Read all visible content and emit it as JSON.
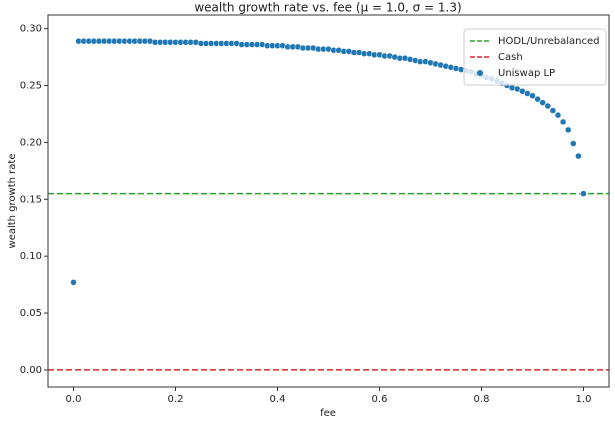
{
  "chart_data": {
    "type": "scatter",
    "title": "wealth growth rate vs. fee (μ = 1.0, σ = 1.3)",
    "xlabel": "fee",
    "ylabel": "wealth growth rate",
    "xlim": [
      -0.05,
      1.05
    ],
    "ylim": [
      -0.015,
      0.312
    ],
    "xticks": [
      {
        "value": 0,
        "label": "0.0"
      },
      0.2,
      0.4,
      0.6,
      0.8,
      {
        "value": 1,
        "label": "1.0"
      }
    ],
    "yticks": [
      {
        "value": 0,
        "label": "0.00"
      },
      0.05,
      {
        "value": 0.1,
        "label": "0.10"
      },
      0.15,
      {
        "value": 0.2,
        "label": "0.20"
      },
      0.25,
      {
        "value": 0.3,
        "label": "0.30"
      }
    ],
    "legend": "upper right",
    "hlines": [
      {
        "name": "HODL/Unrebalanced",
        "color": "#2ca02c",
        "value": 0.155
      },
      {
        "name": "Cash",
        "color": "#d62728",
        "value": 0
      }
    ],
    "series": [
      {
        "name": "Uniswap LP",
        "color": "#1f77b4",
        "x": [
          0,
          0.01,
          0.02,
          0.03,
          0.04,
          0.05,
          0.06,
          0.07,
          0.08,
          0.09,
          0.1,
          0.11,
          0.12,
          0.13,
          0.14,
          0.15,
          0.16,
          0.17,
          0.18,
          0.19,
          0.2,
          0.21,
          0.22,
          0.23,
          0.24,
          0.25,
          0.26,
          0.27,
          0.28,
          0.29,
          0.3,
          0.31,
          0.32,
          0.33,
          0.34,
          0.35,
          0.36,
          0.37,
          0.38,
          0.39,
          0.4,
          0.41,
          0.42,
          0.43,
          0.44,
          0.45,
          0.46,
          0.47,
          0.48,
          0.49,
          0.5,
          0.51,
          0.52,
          0.53,
          0.54,
          0.55,
          0.56,
          0.57,
          0.58,
          0.59,
          0.6,
          0.61,
          0.62,
          0.63,
          0.64,
          0.65,
          0.66,
          0.67,
          0.68,
          0.69,
          0.7,
          0.71,
          0.72,
          0.73,
          0.74,
          0.75,
          0.76,
          0.77,
          0.78,
          0.79,
          0.8,
          0.81,
          0.82,
          0.83,
          0.84,
          0.85,
          0.86,
          0.87,
          0.88,
          0.89,
          0.9,
          0.91,
          0.92,
          0.93,
          0.94,
          0.95,
          0.96,
          0.97,
          0.98,
          0.99,
          1
        ],
        "values": [
          0.077,
          0.289,
          0.289,
          0.289,
          0.289,
          0.289,
          0.289,
          0.289,
          0.289,
          0.289,
          0.289,
          0.289,
          0.289,
          0.289,
          0.289,
          0.289,
          0.288,
          0.288,
          0.288,
          0.288,
          0.288,
          0.288,
          0.288,
          0.288,
          0.288,
          0.287,
          0.287,
          0.287,
          0.287,
          0.287,
          0.287,
          0.287,
          0.287,
          0.286,
          0.286,
          0.286,
          0.286,
          0.286,
          0.285,
          0.285,
          0.285,
          0.285,
          0.284,
          0.284,
          0.284,
          0.283,
          0.283,
          0.283,
          0.282,
          0.282,
          0.282,
          0.281,
          0.281,
          0.28,
          0.28,
          0.279,
          0.279,
          0.278,
          0.278,
          0.277,
          0.277,
          0.276,
          0.276,
          0.275,
          0.274,
          0.274,
          0.273,
          0.272,
          0.271,
          0.271,
          0.27,
          0.269,
          0.268,
          0.267,
          0.266,
          0.265,
          0.264,
          0.263,
          0.262,
          0.26,
          0.259,
          0.257,
          0.256,
          0.254,
          0.252,
          0.25,
          0.248,
          0.247,
          0.245,
          0.243,
          0.241,
          0.238,
          0.235,
          0.232,
          0.228,
          0.224,
          0.218,
          0.211,
          0.199,
          0.188,
          0.155
        ]
      }
    ]
  }
}
